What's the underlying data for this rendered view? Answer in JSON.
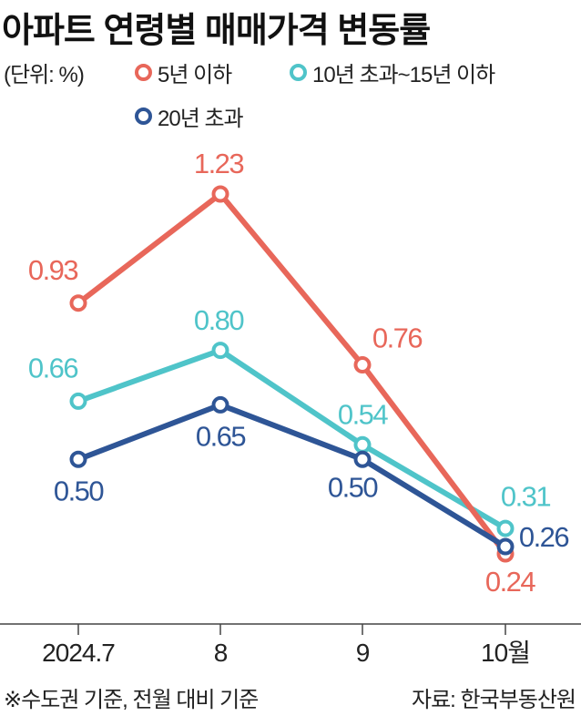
{
  "chart_data": {
    "type": "line",
    "title": "아파트 연령별 매매가격 변동률",
    "unit_label": "(단위: %)",
    "categories": [
      "2024.7",
      "8",
      "9",
      "10월"
    ],
    "series": [
      {
        "name": "5년 이하",
        "color": "#e8675a",
        "values": [
          0.93,
          1.23,
          0.76,
          0.24
        ]
      },
      {
        "name": "10년 초과~15년 이하",
        "color": "#4fc4c9",
        "values": [
          0.66,
          0.8,
          0.54,
          0.31
        ]
      },
      {
        "name": "20년 초과",
        "color": "#2e5596",
        "values": [
          0.5,
          0.65,
          0.5,
          0.26
        ]
      }
    ],
    "grid": false,
    "legend": "top"
  },
  "footer": {
    "note": "※수도권 기준, 전월 대비 기준",
    "source": "자료: 한국부동산원"
  }
}
